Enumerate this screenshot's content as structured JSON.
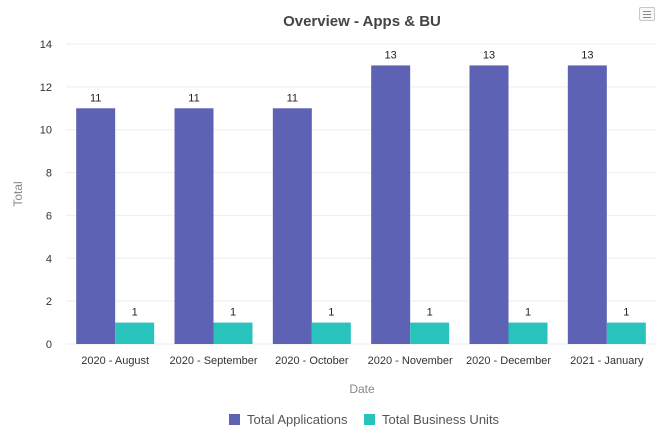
{
  "icons": {
    "menu": "hamburger-menu-icon"
  },
  "colors": {
    "applications": "#5d62b5",
    "business_units": "#29c3be",
    "grid": "#eeeeee"
  },
  "chart_data": {
    "type": "bar",
    "title": "Overview - Apps & BU",
    "xlabel": "Date",
    "ylabel": "Total",
    "ylim": [
      0,
      14
    ],
    "yticks": [
      "0",
      "2",
      "4",
      "6",
      "8",
      "10",
      "12",
      "14"
    ],
    "categories": [
      "2020 - August",
      "2020 - September",
      "2020 - October",
      "2020 - November",
      "2020 - December",
      "2021 - January"
    ],
    "series": [
      {
        "name": "Total Applications",
        "values": [
          11,
          11,
          11,
          13,
          13,
          13
        ]
      },
      {
        "name": "Total Business Units",
        "values": [
          1,
          1,
          1,
          1,
          1,
          1
        ]
      }
    ],
    "legend": "bottom"
  }
}
